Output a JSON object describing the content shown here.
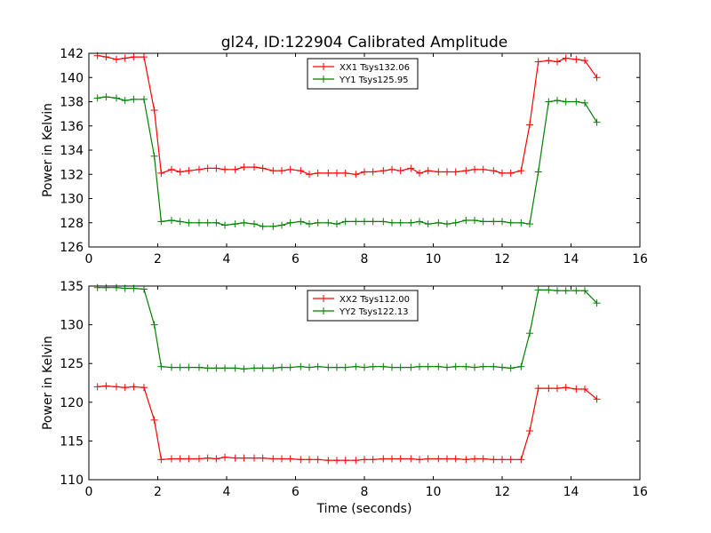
{
  "chart_data": [
    {
      "type": "line",
      "title": "gl24, ID:122904 Calibrated Amplitude",
      "xlabel": "",
      "ylabel": "Power in Kelvin",
      "xlim": [
        0,
        16
      ],
      "ylim": [
        126,
        142
      ],
      "xticks": [
        "0",
        "2",
        "4",
        "6",
        "8",
        "10",
        "12",
        "14",
        "16"
      ],
      "yticks": [
        "126",
        "128",
        "130",
        "132",
        "134",
        "136",
        "138",
        "140",
        "142"
      ],
      "legend_position": "top-center",
      "marker": "plus",
      "x": [
        0.25,
        0.5,
        0.8,
        1.05,
        1.3,
        1.6,
        1.9,
        2.1,
        2.4,
        2.65,
        2.9,
        3.2,
        3.45,
        3.7,
        3.95,
        4.25,
        4.5,
        4.8,
        5.05,
        5.35,
        5.6,
        5.85,
        6.15,
        6.4,
        6.65,
        6.95,
        7.2,
        7.45,
        7.75,
        8.0,
        8.25,
        8.55,
        8.8,
        9.05,
        9.35,
        9.6,
        9.85,
        10.15,
        10.4,
        10.65,
        10.95,
        11.2,
        11.45,
        11.75,
        12.0,
        12.25,
        12.55,
        12.8,
        13.05,
        13.35,
        13.6,
        13.85,
        14.15,
        14.4,
        14.75
      ],
      "series": [
        {
          "name": "XX1 Tsys132.06",
          "color": "#ff0000",
          "values": [
            141.8,
            141.7,
            141.5,
            141.6,
            141.7,
            141.7,
            137.3,
            132.1,
            132.4,
            132.2,
            132.3,
            132.4,
            132.5,
            132.5,
            132.4,
            132.4,
            132.6,
            132.6,
            132.5,
            132.3,
            132.3,
            132.4,
            132.3,
            132.0,
            132.1,
            132.1,
            132.1,
            132.1,
            132.0,
            132.2,
            132.2,
            132.3,
            132.4,
            132.3,
            132.5,
            132.1,
            132.3,
            132.2,
            132.2,
            132.2,
            132.3,
            132.4,
            132.4,
            132.3,
            132.1,
            132.1,
            132.3,
            136.1,
            141.3,
            141.4,
            141.3,
            141.6,
            141.5,
            141.4,
            140.0
          ]
        },
        {
          "name": "YY1 Tsys125.95",
          "color": "#008000",
          "values": [
            138.3,
            138.4,
            138.3,
            138.1,
            138.2,
            138.2,
            133.5,
            128.1,
            128.2,
            128.1,
            128.0,
            128.0,
            128.0,
            128.0,
            127.8,
            127.9,
            128.0,
            127.9,
            127.7,
            127.7,
            127.8,
            128.0,
            128.1,
            127.9,
            128.0,
            128.0,
            127.9,
            128.1,
            128.1,
            128.1,
            128.1,
            128.1,
            128.0,
            128.0,
            128.0,
            128.1,
            127.9,
            128.0,
            127.9,
            128.0,
            128.2,
            128.2,
            128.1,
            128.1,
            128.1,
            128.0,
            128.0,
            127.9,
            132.2,
            138.0,
            138.1,
            138.0,
            138.0,
            137.9,
            136.3
          ]
        }
      ]
    },
    {
      "type": "line",
      "title": "",
      "xlabel": "Time (seconds)",
      "ylabel": "Power in Kelvin",
      "xlim": [
        0,
        16
      ],
      "ylim": [
        110,
        135
      ],
      "xticks": [
        "0",
        "2",
        "4",
        "6",
        "8",
        "10",
        "12",
        "14",
        "16"
      ],
      "yticks": [
        "110",
        "115",
        "120",
        "125",
        "130",
        "135"
      ],
      "legend_position": "top-center",
      "marker": "plus",
      "x": [
        0.25,
        0.5,
        0.8,
        1.05,
        1.3,
        1.6,
        1.9,
        2.1,
        2.4,
        2.65,
        2.9,
        3.2,
        3.45,
        3.7,
        3.95,
        4.25,
        4.5,
        4.8,
        5.05,
        5.35,
        5.6,
        5.85,
        6.15,
        6.4,
        6.65,
        6.95,
        7.2,
        7.45,
        7.75,
        8.0,
        8.25,
        8.55,
        8.8,
        9.05,
        9.35,
        9.6,
        9.85,
        10.15,
        10.4,
        10.65,
        10.95,
        11.2,
        11.45,
        11.75,
        12.0,
        12.25,
        12.55,
        12.8,
        13.05,
        13.35,
        13.6,
        13.85,
        14.15,
        14.4,
        14.75
      ],
      "series": [
        {
          "name": "XX2 Tsys112.00",
          "color": "#ff0000",
          "values": [
            122.0,
            122.1,
            122.0,
            121.9,
            122.0,
            121.9,
            117.7,
            112.6,
            112.7,
            112.7,
            112.7,
            112.7,
            112.8,
            112.7,
            112.9,
            112.8,
            112.8,
            112.8,
            112.8,
            112.7,
            112.7,
            112.7,
            112.6,
            112.6,
            112.6,
            112.5,
            112.5,
            112.5,
            112.5,
            112.6,
            112.6,
            112.7,
            112.7,
            112.7,
            112.7,
            112.6,
            112.7,
            112.7,
            112.7,
            112.7,
            112.6,
            112.7,
            112.7,
            112.6,
            112.6,
            112.6,
            112.6,
            116.3,
            121.8,
            121.8,
            121.8,
            121.9,
            121.7,
            121.7,
            120.4
          ]
        },
        {
          "name": "YY2 Tsys122.13",
          "color": "#008000",
          "values": [
            134.8,
            134.8,
            134.8,
            134.7,
            134.7,
            134.6,
            130.0,
            124.6,
            124.5,
            124.5,
            124.5,
            124.5,
            124.4,
            124.4,
            124.4,
            124.4,
            124.3,
            124.4,
            124.4,
            124.4,
            124.5,
            124.5,
            124.6,
            124.5,
            124.6,
            124.5,
            124.5,
            124.5,
            124.6,
            124.5,
            124.6,
            124.6,
            124.5,
            124.5,
            124.5,
            124.6,
            124.6,
            124.6,
            124.5,
            124.6,
            124.6,
            124.5,
            124.6,
            124.6,
            124.5,
            124.4,
            124.6,
            128.9,
            134.5,
            134.5,
            134.4,
            134.4,
            134.4,
            134.4,
            132.8
          ]
        }
      ]
    }
  ]
}
